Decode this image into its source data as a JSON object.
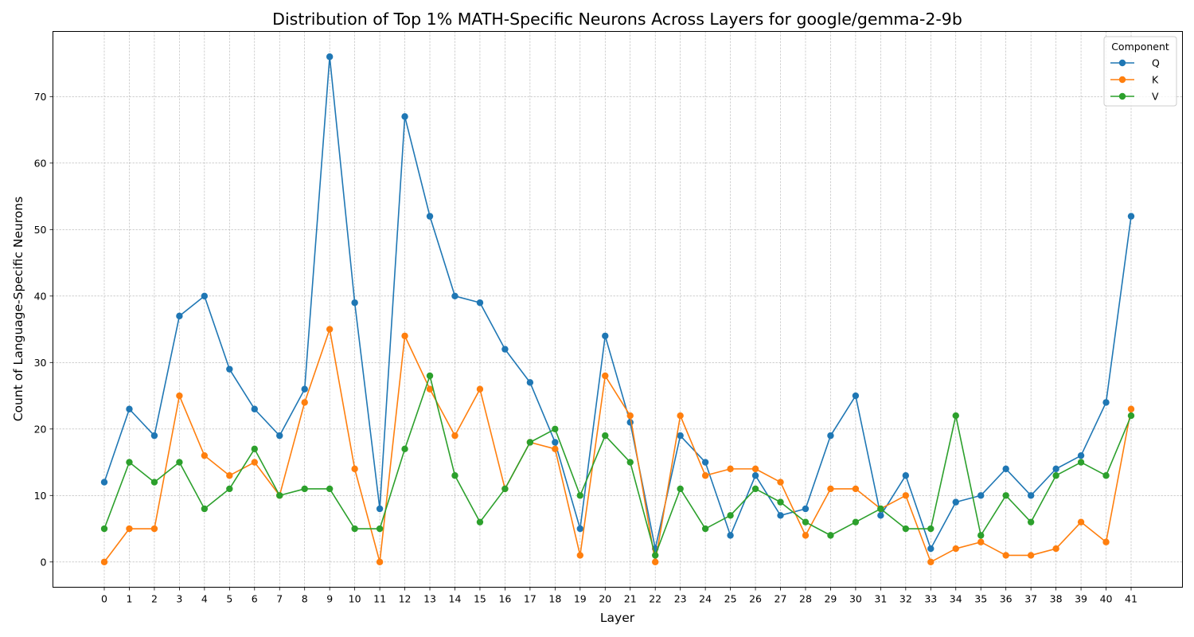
{
  "chart_data": {
    "type": "line",
    "title": "Distribution of Top 1% MATH-Specific Neurons Across Layers for google/gemma-2-9b",
    "xlabel": "Layer",
    "ylabel": "Count of Language-Specific Neurons",
    "x": [
      0,
      1,
      2,
      3,
      4,
      5,
      6,
      7,
      8,
      9,
      10,
      11,
      12,
      13,
      14,
      15,
      16,
      17,
      18,
      19,
      20,
      21,
      22,
      23,
      24,
      25,
      26,
      27,
      28,
      29,
      30,
      31,
      32,
      33,
      34,
      35,
      36,
      37,
      38,
      39,
      40,
      41
    ],
    "xlim": [
      -2.05,
      43.05
    ],
    "ylim": [
      -3.8,
      79.8
    ],
    "yticks": [
      0,
      10,
      20,
      30,
      40,
      50,
      60,
      70
    ],
    "grid": true,
    "legend": {
      "title": "Component",
      "position": "top-right"
    },
    "series": [
      {
        "name": "Q",
        "color": "#1f77b4",
        "values": [
          12,
          23,
          19,
          37,
          40,
          29,
          23,
          19,
          26,
          76,
          39,
          8,
          67,
          52,
          40,
          39,
          32,
          27,
          18,
          5,
          34,
          21,
          2,
          19,
          15,
          4,
          13,
          7,
          8,
          19,
          25,
          7,
          13,
          2,
          9,
          10,
          14,
          10,
          14,
          16,
          24,
          52
        ]
      },
      {
        "name": "K",
        "color": "#ff7f0e",
        "values": [
          0,
          5,
          5,
          25,
          16,
          13,
          15,
          10,
          24,
          35,
          14,
          0,
          34,
          26,
          19,
          26,
          11,
          18,
          17,
          1,
          28,
          22,
          0,
          22,
          13,
          14,
          14,
          12,
          4,
          11,
          11,
          8,
          10,
          0,
          2,
          3,
          1,
          1,
          2,
          6,
          3,
          23
        ]
      },
      {
        "name": "V",
        "color": "#2ca02c",
        "values": [
          5,
          15,
          12,
          15,
          8,
          11,
          17,
          10,
          11,
          11,
          5,
          5,
          17,
          28,
          13,
          6,
          11,
          18,
          20,
          10,
          19,
          15,
          1,
          11,
          5,
          7,
          11,
          9,
          6,
          4,
          6,
          8,
          5,
          5,
          22,
          4,
          10,
          6,
          13,
          15,
          13,
          22
        ]
      }
    ]
  }
}
